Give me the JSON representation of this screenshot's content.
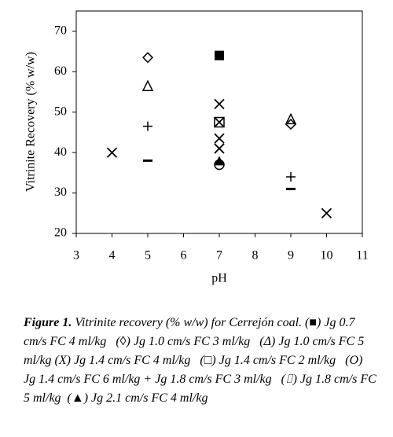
{
  "chart_data": {
    "type": "scatter",
    "x_label": "pH",
    "y_label": "Vitrinite Recovery (% w/w)",
    "xlim": [
      3,
      11
    ],
    "xticks": [
      3,
      4,
      5,
      6,
      7,
      8,
      9,
      10,
      11
    ],
    "ylim": [
      20,
      75
    ],
    "yticks": [
      20,
      30,
      40,
      50,
      60,
      70
    ],
    "color": "#000000",
    "series": [
      {
        "marker": "square-filled",
        "x": [
          7
        ],
        "values": [
          64
        ]
      },
      {
        "marker": "diamond",
        "x": [
          5,
          9
        ],
        "values": [
          63.5,
          47
        ]
      },
      {
        "marker": "triangle",
        "x": [
          5,
          9
        ],
        "values": [
          56.5,
          48.3
        ]
      },
      {
        "marker": "x",
        "x": [
          4,
          7,
          7,
          7,
          7,
          10
        ],
        "values": [
          40,
          52,
          47.5,
          43.5,
          41,
          25
        ]
      },
      {
        "marker": "square",
        "x": [
          7
        ],
        "values": [
          47.5
        ]
      },
      {
        "marker": "circle",
        "x": [
          7
        ],
        "values": [
          37
        ]
      },
      {
        "marker": "plus",
        "x": [
          5,
          9
        ],
        "values": [
          46.5,
          34
        ]
      },
      {
        "marker": "dash",
        "x": [
          5,
          9
        ],
        "values": [
          38,
          31
        ]
      },
      {
        "marker": "triangle-filled",
        "x": [
          7
        ],
        "values": [
          38
        ]
      }
    ]
  },
  "caption": {
    "label": "Figure 1.",
    "text": "Vitrinite recovery (% w/w) for Cerrejón coal. (■) Jg 0.7 cm/s FC 4 ml/kg   (◊) Jg 1.0 cm/s FC 3 ml/kg   (Δ) Jg 1.0 cm/s FC 5 ml/kg (X) Jg 1.4 cm/s FC 4 ml/kg   (□) Jg 1.4 cm/s FC 2 ml/kg   (O) Jg 1.4 cm/s FC 6 ml/kg + Jg 1.8 cm/s FC 3 ml/kg   (⌷) Jg 1.8 cm/s FC 5 ml/kg  (▲) Jg 2.1 cm/s FC 4 ml/kg"
  }
}
